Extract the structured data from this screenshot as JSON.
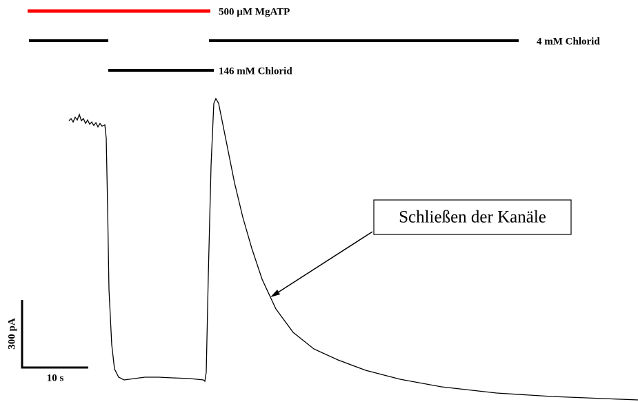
{
  "labels": {
    "mgatp": "500 µM MgATP",
    "low_chloride": "4 mM Chlorid",
    "high_chloride": "146 mM Chlorid"
  },
  "annotation": "Schließen der Kanäle",
  "scale_bar": {
    "current": "300 pA",
    "time": "10 s"
  }
}
